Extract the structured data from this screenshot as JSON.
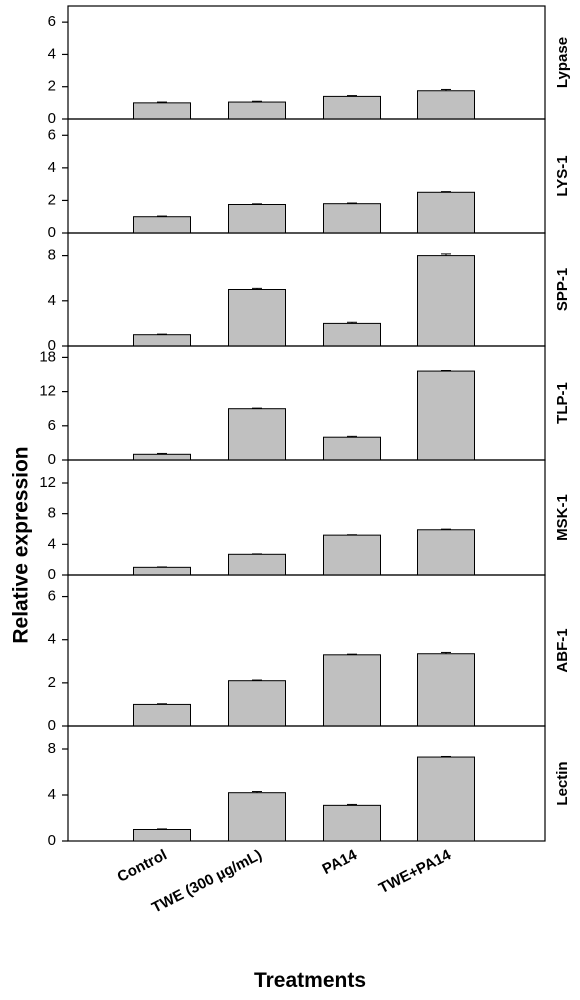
{
  "chart_data": {
    "type": "bar",
    "xlabel": "Treatments",
    "ylabel": "Relative expression",
    "categories": [
      "Control",
      "TWE (300 µg/mL)",
      "PA14",
      "TWE+PA14"
    ],
    "bar_color": "#c0c0c0",
    "error_bars": true,
    "grid": false,
    "panels": [
      {
        "name": "Lypase",
        "ylim": [
          0,
          7
        ],
        "yticks": [
          0,
          2,
          4,
          6
        ],
        "values": [
          1.0,
          1.05,
          1.4,
          1.75
        ],
        "errors": [
          0.05,
          0.05,
          0.05,
          0.08
        ]
      },
      {
        "name": "LYS-1",
        "ylim": [
          0,
          7
        ],
        "yticks": [
          0,
          2,
          4,
          6
        ],
        "values": [
          1.0,
          1.75,
          1.8,
          2.5
        ],
        "errors": [
          0.04,
          0.04,
          0.04,
          0.04
        ]
      },
      {
        "name": "SPP-1",
        "ylim": [
          0,
          10
        ],
        "yticks": [
          0,
          4,
          8
        ],
        "values": [
          1.0,
          5.0,
          2.0,
          8.0
        ],
        "errors": [
          0.05,
          0.1,
          0.1,
          0.15
        ]
      },
      {
        "name": "TLP-1",
        "ylim": [
          0,
          20
        ],
        "yticks": [
          0,
          6,
          12,
          18
        ],
        "values": [
          1.0,
          9.0,
          4.0,
          15.6
        ],
        "errors": [
          0.15,
          0.1,
          0.15,
          0.1
        ]
      },
      {
        "name": "MSK-1",
        "ylim": [
          0,
          15
        ],
        "yticks": [
          0,
          4,
          8,
          12
        ],
        "values": [
          1.0,
          2.7,
          5.2,
          5.9
        ],
        "errors": [
          0.05,
          0.05,
          0.05,
          0.08
        ]
      },
      {
        "name": "ABF-1",
        "ylim": [
          0,
          7
        ],
        "yticks": [
          0,
          2,
          4,
          6
        ],
        "values": [
          1.0,
          2.1,
          3.3,
          3.35
        ],
        "errors": [
          0.03,
          0.03,
          0.03,
          0.06
        ]
      },
      {
        "name": "Lectin",
        "ylim": [
          0,
          10
        ],
        "yticks": [
          0,
          4,
          8
        ],
        "values": [
          1.0,
          4.2,
          3.1,
          7.3
        ],
        "errors": [
          0.05,
          0.1,
          0.08,
          0.05
        ]
      }
    ]
  }
}
